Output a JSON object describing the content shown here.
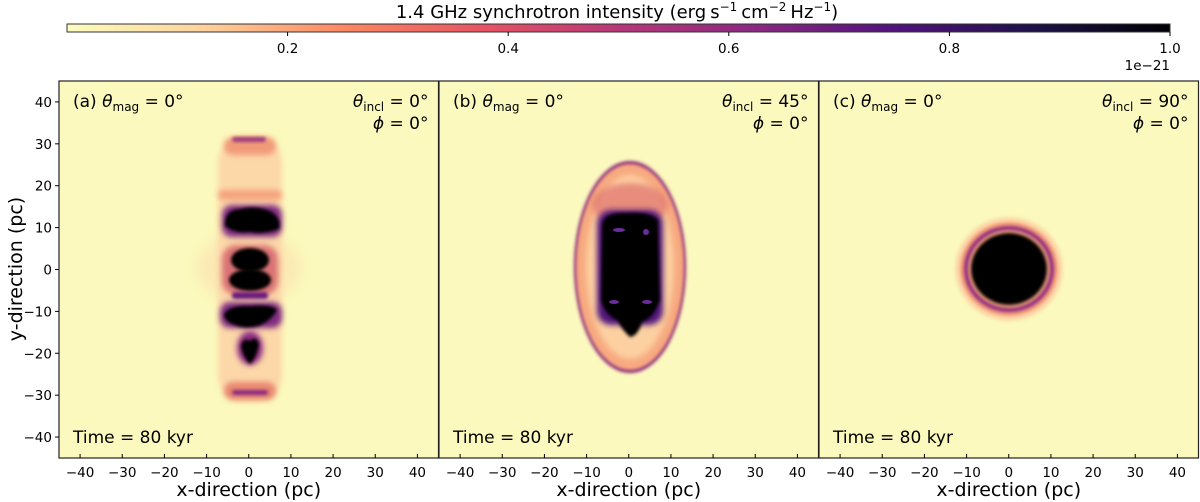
{
  "chart_data": {
    "type": "heatmap",
    "colorbar": {
      "title_main": "1.4 GHz synchrotron intensity (",
      "title_units": [
        "erg",
        "s",
        "−1",
        "cm",
        "−2",
        "Hz",
        "−1",
        ")"
      ],
      "range": [
        0,
        1.0
      ],
      "ticks": [
        "0.2",
        "0.4",
        "0.6",
        "0.8",
        "1.0"
      ],
      "tick_values": [
        0.2,
        0.4,
        0.6,
        0.8,
        1.0
      ],
      "offset_label": "1e−21",
      "colormap": "magma_r",
      "location": "top",
      "colors": {
        "low": "#fcfdbf",
        "mid_low": "#fc8961",
        "mid": "#b73779",
        "mid_high": "#51127c",
        "high": "#000004"
      }
    },
    "xlabel": "x-direction (pc)",
    "ylabel": "y-direction (pc)",
    "xlim": [
      -45,
      45
    ],
    "ylim": [
      -45,
      45
    ],
    "xticks": [
      -40,
      -30,
      -20,
      -10,
      0,
      10,
      20,
      30,
      40
    ],
    "yticks": [
      -40,
      -30,
      -20,
      -10,
      0,
      10,
      20,
      30,
      40
    ],
    "symbols": {
      "theta": "θ",
      "phi": "ϕ",
      "mag": "mag",
      "incl": "incl",
      "eq": " = "
    },
    "panels": [
      {
        "label": "(a)",
        "theta_mag": "0°",
        "theta_incl": "0°",
        "phi": "0°",
        "time": "Time = 80 kyr"
      },
      {
        "label": "(b)",
        "theta_mag": "0°",
        "theta_incl": "45°",
        "phi": "0°",
        "time": "Time = 80 kyr"
      },
      {
        "label": "(c)",
        "theta_mag": "0°",
        "theta_incl": "90°",
        "phi": "0°",
        "time": "Time = 80 kyr"
      }
    ]
  }
}
